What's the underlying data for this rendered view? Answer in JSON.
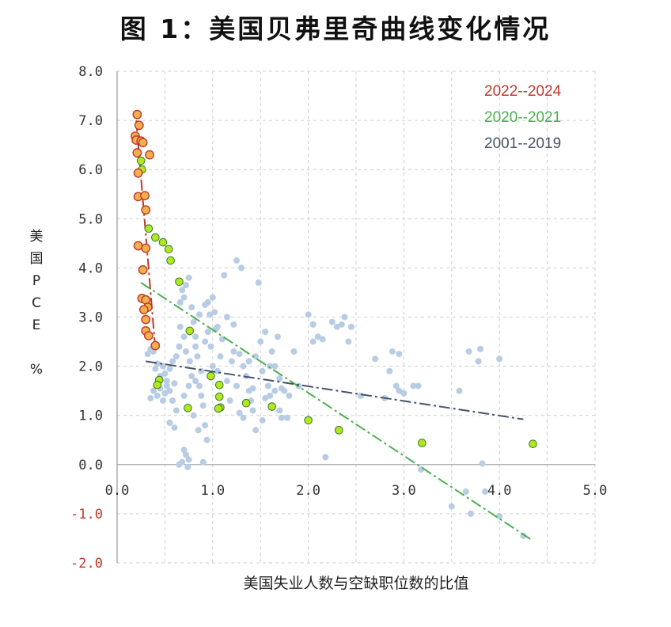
{
  "title": "图 1：美国贝弗里奇曲线变化情况",
  "chart_data": {
    "type": "scatter",
    "title": "图 1：美国贝弗里奇曲线变化情况",
    "xlabel": "美国失业人数与空缺职位数的比值",
    "ylabel_chars": [
      "美",
      "国",
      "P",
      "C",
      "E",
      "",
      "%"
    ],
    "xlim": [
      0,
      5
    ],
    "ylim": [
      -2,
      8
    ],
    "xticks": [
      "0.0",
      "1.0",
      "2.0",
      "3.0",
      "4.0",
      "5.0"
    ],
    "yticks": [
      "8.0",
      "7.0",
      "6.0",
      "5.0",
      "4.0",
      "3.0",
      "2.0",
      "1.0",
      "0.0",
      "-1.0",
      "-2.0"
    ],
    "grid": true,
    "legend_position": "top-right",
    "colors": {
      "s2001": "#b8cce4",
      "s2020": "#b5e61d",
      "s2022": "#f0b050",
      "s2022_edge": "#c0392b",
      "s2020_edge": "#2e7d32",
      "fit2001": "#44546a",
      "fit2020": "#4caf50",
      "fit2022": "#c0392b"
    },
    "series": [
      {
        "name": "2022--2024",
        "points": [
          [
            0.21,
            7.12
          ],
          [
            0.19,
            6.68
          ],
          [
            0.2,
            6.6
          ],
          [
            0.23,
            6.9
          ],
          [
            0.25,
            6.58
          ],
          [
            0.27,
            6.55
          ],
          [
            0.21,
            6.34
          ],
          [
            0.34,
            6.3
          ],
          [
            0.22,
            5.93
          ],
          [
            0.22,
            5.45
          ],
          [
            0.29,
            5.47
          ],
          [
            0.3,
            5.18
          ],
          [
            0.22,
            4.45
          ],
          [
            0.3,
            4.4
          ],
          [
            0.27,
            3.96
          ],
          [
            0.26,
            3.38
          ],
          [
            0.3,
            3.35
          ],
          [
            0.32,
            3.2
          ],
          [
            0.28,
            3.15
          ],
          [
            0.3,
            2.95
          ],
          [
            0.3,
            2.72
          ],
          [
            0.33,
            2.62
          ],
          [
            0.4,
            2.42
          ]
        ]
      },
      {
        "name": "2020--2021",
        "points": [
          [
            0.25,
            6.18
          ],
          [
            0.26,
            6.0
          ],
          [
            0.33,
            4.8
          ],
          [
            0.4,
            4.62
          ],
          [
            0.48,
            4.52
          ],
          [
            0.54,
            4.38
          ],
          [
            0.56,
            4.15
          ],
          [
            0.65,
            3.72
          ],
          [
            0.76,
            2.72
          ],
          [
            0.44,
            1.72
          ],
          [
            0.42,
            1.62
          ],
          [
            0.98,
            1.8
          ],
          [
            1.07,
            1.62
          ],
          [
            1.07,
            1.38
          ],
          [
            1.08,
            1.16
          ],
          [
            1.06,
            1.14
          ],
          [
            0.74,
            1.15
          ],
          [
            1.35,
            1.25
          ],
          [
            1.62,
            1.18
          ],
          [
            2.0,
            0.9
          ],
          [
            2.32,
            0.7
          ],
          [
            3.19,
            0.44
          ],
          [
            4.35,
            0.42
          ]
        ]
      },
      {
        "name": "2001--2019",
        "points": [
          [
            0.32,
            2.25
          ],
          [
            0.35,
            2.35
          ],
          [
            0.38,
            2.3
          ],
          [
            0.4,
            1.95
          ],
          [
            0.42,
            2.05
          ],
          [
            0.45,
            1.8
          ],
          [
            0.48,
            2.0
          ],
          [
            0.5,
            1.85
          ],
          [
            0.52,
            1.7
          ],
          [
            0.55,
            1.95
          ],
          [
            0.58,
            2.1
          ],
          [
            0.6,
            1.65
          ],
          [
            0.62,
            2.2
          ],
          [
            0.65,
            2.4
          ],
          [
            0.66,
            3.3
          ],
          [
            0.68,
            3.55
          ],
          [
            0.7,
            3.4
          ],
          [
            0.72,
            3.65
          ],
          [
            0.75,
            3.8
          ],
          [
            0.78,
            3.2
          ],
          [
            0.8,
            2.9
          ],
          [
            0.82,
            2.6
          ],
          [
            0.84,
            2.2
          ],
          [
            0.86,
            1.6
          ],
          [
            0.88,
            1.4
          ],
          [
            0.9,
            1.2
          ],
          [
            0.92,
            0.8
          ],
          [
            0.94,
            0.5
          ],
          [
            0.7,
            0.3
          ],
          [
            0.72,
            0.2
          ],
          [
            0.75,
            0.1
          ],
          [
            0.68,
            0.05
          ],
          [
            0.65,
            0.0
          ],
          [
            0.74,
            -0.05
          ],
          [
            0.9,
            0.05
          ],
          [
            0.95,
            3.3
          ],
          [
            1.0,
            3.4
          ],
          [
            1.02,
            3.1
          ],
          [
            1.05,
            2.8
          ],
          [
            1.1,
            2.55
          ],
          [
            1.12,
            3.85
          ],
          [
            1.15,
            3.0
          ],
          [
            1.2,
            2.1
          ],
          [
            1.22,
            2.3
          ],
          [
            1.25,
            1.6
          ],
          [
            1.25,
            4.15
          ],
          [
            1.3,
            4.0
          ],
          [
            1.32,
            2.0
          ],
          [
            1.35,
            1.8
          ],
          [
            1.38,
            1.5
          ],
          [
            1.4,
            1.3
          ],
          [
            1.42,
            1.1
          ],
          [
            1.45,
            2.2
          ],
          [
            1.48,
            3.7
          ],
          [
            1.5,
            2.5
          ],
          [
            1.52,
            1.9
          ],
          [
            1.55,
            2.7
          ],
          [
            1.58,
            1.6
          ],
          [
            1.6,
            1.4
          ],
          [
            1.62,
            2.3
          ],
          [
            1.65,
            2.0
          ],
          [
            1.68,
            2.6
          ],
          [
            1.7,
            1.75
          ],
          [
            1.72,
            1.55
          ],
          [
            1.75,
            1.5
          ],
          [
            1.78,
            0.95
          ],
          [
            1.8,
            1.4
          ],
          [
            1.85,
            2.3
          ],
          [
            1.9,
            1.6
          ],
          [
            2.0,
            3.05
          ],
          [
            2.05,
            2.85
          ],
          [
            2.05,
            2.5
          ],
          [
            2.1,
            2.6
          ],
          [
            2.15,
            2.55
          ],
          [
            2.18,
            0.15
          ],
          [
            2.25,
            2.9
          ],
          [
            2.3,
            2.8
          ],
          [
            2.35,
            2.85
          ],
          [
            2.38,
            3.0
          ],
          [
            2.42,
            2.5
          ],
          [
            2.45,
            2.8
          ],
          [
            2.55,
            1.4
          ],
          [
            2.7,
            2.15
          ],
          [
            2.8,
            1.35
          ],
          [
            2.85,
            1.9
          ],
          [
            2.88,
            2.3
          ],
          [
            2.92,
            1.6
          ],
          [
            2.95,
            2.25
          ],
          [
            2.95,
            1.5
          ],
          [
            3.0,
            1.45
          ],
          [
            3.1,
            1.6
          ],
          [
            3.15,
            1.6
          ],
          [
            3.18,
            -0.1
          ],
          [
            3.5,
            -0.85
          ],
          [
            3.58,
            1.5
          ],
          [
            3.65,
            -0.55
          ],
          [
            3.68,
            2.3
          ],
          [
            3.7,
            -1.0
          ],
          [
            3.78,
            2.1
          ],
          [
            3.8,
            2.35
          ],
          [
            3.82,
            0.02
          ],
          [
            3.85,
            -0.55
          ],
          [
            4.0,
            -1.05
          ],
          [
            4.0,
            2.15
          ],
          [
            4.25,
            -1.45
          ],
          [
            0.55,
            0.85
          ],
          [
            0.6,
            0.75
          ],
          [
            0.62,
            1.1
          ],
          [
            0.55,
            1.5
          ],
          [
            0.58,
            1.3
          ],
          [
            0.8,
            1.0
          ],
          [
            0.85,
            0.7
          ],
          [
            0.88,
            1.9
          ],
          [
            0.92,
            2.5
          ],
          [
            0.95,
            2.7
          ],
          [
            0.98,
            2.4
          ],
          [
            1.0,
            2.0
          ],
          [
            1.05,
            1.9
          ],
          [
            1.08,
            2.2
          ],
          [
            1.15,
            1.7
          ],
          [
            1.18,
            1.3
          ],
          [
            1.28,
            1.05
          ],
          [
            1.32,
            0.95
          ],
          [
            1.45,
            0.7
          ],
          [
            1.52,
            0.9
          ],
          [
            1.6,
            2.0
          ],
          [
            1.7,
            1.1
          ],
          [
            0.45,
            1.55
          ],
          [
            0.5,
            1.45
          ],
          [
            0.35,
            1.35
          ],
          [
            0.38,
            1.5
          ],
          [
            0.42,
            1.4
          ],
          [
            0.48,
            1.3
          ],
          [
            0.52,
            1.6
          ],
          [
            0.66,
            2.8
          ],
          [
            0.7,
            2.6
          ],
          [
            0.72,
            2.3
          ],
          [
            0.76,
            2.1
          ],
          [
            0.78,
            1.8
          ],
          [
            0.82,
            1.7
          ],
          [
            0.7,
            1.4
          ],
          [
            0.75,
            1.6
          ],
          [
            0.82,
            2.4
          ],
          [
            0.86,
            3.05
          ],
          [
            0.92,
            3.25
          ],
          [
            0.97,
            3.05
          ],
          [
            1.03,
            2.75
          ],
          [
            1.22,
            2.85
          ],
          [
            1.28,
            2.25
          ],
          [
            1.38,
            2.1
          ],
          [
            1.42,
            1.55
          ],
          [
            1.55,
            1.35
          ],
          [
            1.65,
            1.5
          ],
          [
            1.72,
            0.95
          ]
        ]
      }
    ],
    "fits": [
      {
        "name": "2022--2024",
        "from": [
          0.2,
          7.0
        ],
        "to": [
          0.4,
          2.35
        ],
        "style": "dashdot"
      },
      {
        "name": "2020--2021",
        "from": [
          0.25,
          3.7
        ],
        "to": [
          4.35,
          -1.55
        ],
        "style": "dashdot"
      },
      {
        "name": "2001--2019",
        "from": [
          0.3,
          2.1
        ],
        "to": [
          4.25,
          0.92
        ],
        "style": "dashdot"
      }
    ],
    "legend": [
      {
        "label": "2022--2024",
        "color": "#c0392b"
      },
      {
        "label": "2020--2021",
        "color": "#4caf50"
      },
      {
        "label": "2001--2019",
        "color": "#44546a"
      }
    ]
  }
}
